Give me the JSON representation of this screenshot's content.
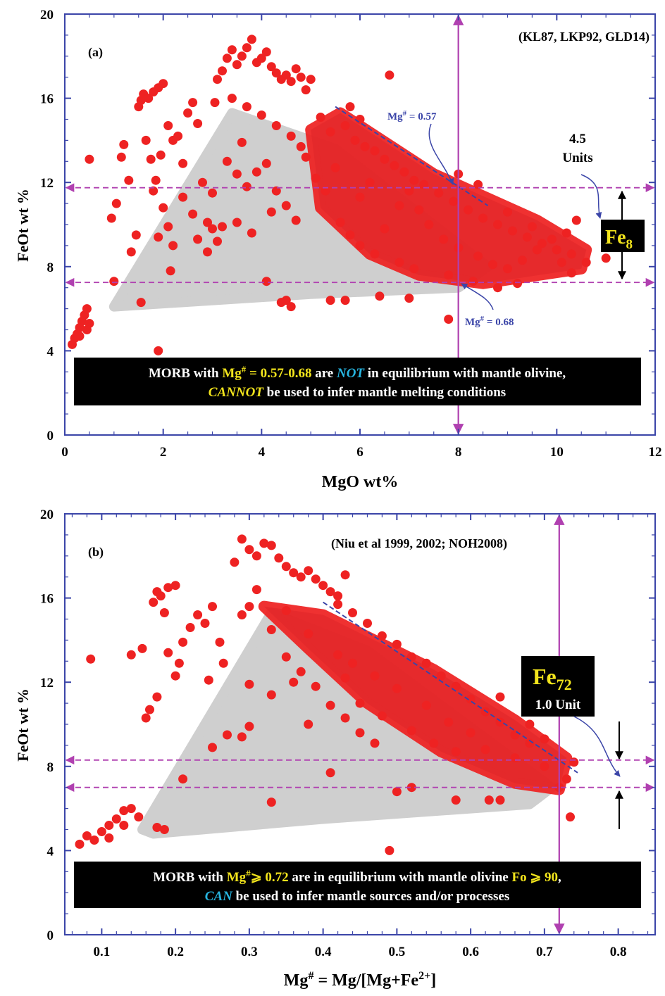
{
  "colors": {
    "frame": "#3b45a8",
    "points": "#ee2222",
    "dense": "#d81f24",
    "field": "#cfcfcf",
    "guide": "#b040b0",
    "annotation": "#3b45a8",
    "highlight": "#f2e41c",
    "italic_blue": "#27b5e0",
    "box_bg": "#000000"
  },
  "chart_data": [
    {
      "type": "scatter",
      "panel_label": "(a)",
      "source": "(KL87, LKP92, GLD14)",
      "xlabel": "MgO wt%",
      "ylabel": "FeOt wt %",
      "xlim": [
        0,
        12
      ],
      "ylim": [
        0,
        20
      ],
      "xticks": [
        "0",
        "2",
        "4",
        "6",
        "8",
        "10",
        "12"
      ],
      "yticks": [
        "0",
        "4",
        "8",
        "12",
        "16",
        "20"
      ],
      "vline_x": 8,
      "hlines_y": [
        11.75,
        7.25
      ],
      "gray_field": [
        [
          1.0,
          6.1
        ],
        [
          3.4,
          15.3
        ],
        [
          5.5,
          13.6
        ],
        [
          8.6,
          8.0
        ],
        [
          8.0,
          7.0
        ],
        [
          5.0,
          6.7
        ],
        [
          1.0,
          6.1
        ]
      ],
      "dense_band": [
        [
          5.0,
          14.5
        ],
        [
          5.6,
          15.3
        ],
        [
          7.5,
          12.4
        ],
        [
          9.6,
          10.2
        ],
        [
          10.6,
          8.8
        ],
        [
          10.5,
          7.9
        ],
        [
          8.5,
          7.2
        ],
        [
          7.2,
          7.6
        ],
        [
          6.2,
          8.6
        ],
        [
          5.2,
          10.8
        ],
        [
          5.0,
          14.5
        ]
      ],
      "dashed_line": [
        [
          5.5,
          15.6
        ],
        [
          8.6,
          10.9
        ]
      ],
      "annotations": {
        "mg057_label": "Mg",
        "mg057_sup": "#",
        "mg057_value": " = 0.57",
        "mg068_label": "Mg",
        "mg068_sup": "#",
        "mg068_value": " = 0.68",
        "units_top": "4.5",
        "units_bottom": "Units",
        "fe_main": "Fe",
        "fe_sub": "8"
      },
      "message": {
        "line1_a": "MORB with ",
        "line1_b": "Mg",
        "line1_c": "#",
        "line1_d": " = 0.57-0.68",
        "line1_e": " are ",
        "line1_f": "NOT",
        "line1_g": " in equilibrium with mantle olivine,",
        "line2_a": "CANNOT",
        "line2_b": " be used to infer mantle melting conditions"
      },
      "points": [
        [
          0.15,
          4.3
        ],
        [
          0.2,
          4.6
        ],
        [
          0.25,
          4.8
        ],
        [
          0.3,
          5.1
        ],
        [
          0.35,
          5.4
        ],
        [
          0.4,
          5.7
        ],
        [
          0.45,
          6.0
        ],
        [
          0.5,
          5.3
        ],
        [
          0.3,
          4.7
        ],
        [
          0.45,
          5.0
        ],
        [
          0.5,
          13.1
        ],
        [
          0.95,
          10.3
        ],
        [
          1.0,
          7.3
        ],
        [
          1.05,
          11.0
        ],
        [
          1.15,
          13.2
        ],
        [
          1.2,
          13.8
        ],
        [
          1.3,
          12.1
        ],
        [
          1.35,
          8.7
        ],
        [
          1.45,
          9.5
        ],
        [
          1.5,
          15.6
        ],
        [
          1.55,
          15.9
        ],
        [
          1.6,
          16.2
        ],
        [
          1.7,
          16.0
        ],
        [
          1.8,
          16.3
        ],
        [
          1.9,
          16.5
        ],
        [
          2.0,
          16.7
        ],
        [
          1.65,
          14.0
        ],
        [
          1.75,
          13.1
        ],
        [
          1.85,
          12.1
        ],
        [
          1.95,
          13.3
        ],
        [
          2.1,
          14.7
        ],
        [
          2.2,
          14.0
        ],
        [
          2.0,
          10.8
        ],
        [
          2.1,
          9.9
        ],
        [
          1.9,
          9.4
        ],
        [
          1.55,
          6.3
        ],
        [
          1.9,
          4.0
        ],
        [
          2.15,
          7.8
        ],
        [
          2.3,
          14.2
        ],
        [
          2.4,
          12.9
        ],
        [
          2.5,
          15.3
        ],
        [
          2.6,
          15.8
        ],
        [
          2.7,
          14.8
        ],
        [
          2.8,
          12.0
        ],
        [
          2.9,
          10.1
        ],
        [
          3.0,
          9.8
        ],
        [
          3.05,
          15.8
        ],
        [
          3.1,
          16.9
        ],
        [
          3.2,
          17.3
        ],
        [
          3.3,
          17.9
        ],
        [
          3.4,
          18.3
        ],
        [
          3.5,
          17.6
        ],
        [
          3.6,
          18.0
        ],
        [
          3.7,
          18.4
        ],
        [
          3.8,
          18.8
        ],
        [
          3.9,
          17.7
        ],
        [
          4.0,
          17.9
        ],
        [
          4.1,
          18.2
        ],
        [
          4.2,
          17.5
        ],
        [
          4.3,
          17.2
        ],
        [
          4.4,
          16.9
        ],
        [
          4.5,
          17.1
        ],
        [
          4.6,
          16.8
        ],
        [
          4.7,
          17.4
        ],
        [
          4.8,
          17.0
        ],
        [
          4.9,
          16.4
        ],
        [
          5.0,
          16.9
        ],
        [
          3.3,
          13.0
        ],
        [
          3.5,
          12.4
        ],
        [
          3.7,
          11.8
        ],
        [
          3.9,
          12.5
        ],
        [
          4.1,
          12.9
        ],
        [
          4.3,
          11.6
        ],
        [
          4.5,
          10.9
        ],
        [
          4.7,
          10.2
        ],
        [
          4.2,
          10.6
        ],
        [
          3.8,
          9.6
        ],
        [
          3.5,
          10.1
        ],
        [
          3.2,
          9.9
        ],
        [
          2.9,
          8.7
        ],
        [
          3.1,
          9.2
        ],
        [
          4.4,
          6.3
        ],
        [
          4.5,
          6.4
        ],
        [
          4.1,
          7.3
        ],
        [
          5.4,
          6.4
        ],
        [
          5.7,
          6.4
        ],
        [
          6.4,
          6.6
        ],
        [
          7.0,
          6.5
        ],
        [
          7.8,
          5.5
        ],
        [
          6.6,
          17.1
        ],
        [
          5.2,
          15.1
        ],
        [
          5.4,
          14.4
        ],
        [
          5.7,
          14.7
        ],
        [
          5.9,
          14.0
        ],
        [
          6.1,
          13.7
        ],
        [
          6.3,
          13.5
        ],
        [
          6.5,
          13.1
        ],
        [
          6.7,
          12.8
        ],
        [
          6.9,
          12.5
        ],
        [
          7.1,
          12.1
        ],
        [
          7.3,
          11.9
        ],
        [
          7.6,
          11.5
        ],
        [
          7.9,
          11.1
        ],
        [
          8.2,
          10.7
        ],
        [
          8.5,
          10.3
        ],
        [
          8.8,
          10.0
        ],
        [
          9.1,
          9.7
        ],
        [
          9.4,
          9.4
        ],
        [
          9.7,
          9.1
        ],
        [
          10.0,
          8.8
        ],
        [
          10.3,
          8.6
        ],
        [
          10.6,
          8.2
        ],
        [
          11.0,
          8.4
        ],
        [
          10.4,
          10.2
        ],
        [
          9.2,
          7.2
        ],
        [
          8.8,
          7.0
        ],
        [
          8.3,
          7.3
        ],
        [
          7.8,
          7.6
        ],
        [
          5.6,
          10.1
        ],
        [
          5.8,
          9.5
        ],
        [
          6.0,
          9.0
        ],
        [
          6.3,
          8.6
        ],
        [
          5.3,
          11.6
        ],
        [
          5.5,
          12.7
        ],
        [
          5.1,
          12.2
        ],
        [
          4.9,
          13.2
        ],
        [
          4.6,
          14.2
        ],
        [
          4.3,
          14.7
        ],
        [
          4.0,
          15.2
        ],
        [
          3.7,
          15.6
        ],
        [
          3.4,
          16.0
        ],
        [
          5.8,
          15.6
        ],
        [
          6.0,
          15.0
        ],
        [
          7.2,
          10.7
        ],
        [
          7.4,
          10.0
        ],
        [
          7.7,
          9.3
        ],
        [
          8.0,
          8.9
        ],
        [
          8.4,
          8.5
        ],
        [
          8.7,
          8.1
        ],
        [
          9.0,
          7.9
        ],
        [
          9.3,
          8.3
        ],
        [
          9.6,
          8.8
        ],
        [
          9.9,
          9.3
        ],
        [
          10.2,
          9.6
        ],
        [
          6.8,
          8.2
        ],
        [
          7.1,
          7.9
        ],
        [
          6.5,
          9.8
        ],
        [
          6.8,
          10.9
        ],
        [
          7.0,
          11.6
        ],
        [
          6.2,
          12.0
        ],
        [
          6.0,
          11.3
        ],
        [
          8.0,
          12.4
        ],
        [
          8.4,
          11.9
        ],
        [
          9.0,
          10.6
        ],
        [
          9.5,
          9.9
        ],
        [
          10.1,
          8.2
        ],
        [
          10.3,
          7.7
        ],
        [
          2.4,
          11.3
        ],
        [
          2.6,
          10.5
        ],
        [
          2.2,
          9.0
        ],
        [
          1.8,
          11.6
        ],
        [
          4.6,
          6.1
        ],
        [
          3.6,
          13.9
        ],
        [
          4.8,
          13.7
        ],
        [
          3.0,
          11.5
        ],
        [
          2.7,
          9.3
        ]
      ]
    },
    {
      "type": "scatter",
      "panel_label": "(b)",
      "source": "(Niu et al 1999, 2002; NOH2008)",
      "xlabel_main": "Mg",
      "xlabel_sup": "#",
      "xlabel_rest": " = Mg/[Mg+Fe",
      "xlabel_sup2": "2+",
      "xlabel_end": "]",
      "ylabel": "FeOt wt %",
      "xlim": [
        0.05,
        0.85
      ],
      "ylim": [
        0,
        20
      ],
      "xticks": [
        "0.1",
        "0.2",
        "0.3",
        "0.4",
        "0.5",
        "0.6",
        "0.7",
        "0.8"
      ],
      "yticks": [
        "0",
        "4",
        "8",
        "12",
        "16",
        "20"
      ],
      "vline_x": 0.72,
      "hlines_y": [
        8.3,
        7.0
      ],
      "gray_field": [
        [
          0.155,
          5.0
        ],
        [
          0.33,
          15.3
        ],
        [
          0.46,
          13.5
        ],
        [
          0.71,
          7.0
        ],
        [
          0.68,
          6.2
        ],
        [
          0.4,
          5.5
        ],
        [
          0.17,
          4.8
        ],
        [
          0.155,
          5.0
        ]
      ],
      "dense_band": [
        [
          0.32,
          15.6
        ],
        [
          0.4,
          15.2
        ],
        [
          0.55,
          12.6
        ],
        [
          0.66,
          10.2
        ],
        [
          0.73,
          8.4
        ],
        [
          0.72,
          6.9
        ],
        [
          0.66,
          7.2
        ],
        [
          0.56,
          8.7
        ],
        [
          0.46,
          11.0
        ],
        [
          0.38,
          13.6
        ],
        [
          0.32,
          15.6
        ]
      ],
      "dashed_line": [
        [
          0.4,
          15.8
        ],
        [
          0.745,
          7.7
        ]
      ],
      "annotations": {
        "fe_main": "Fe",
        "fe_sub": "72",
        "units": "1.0 Unit"
      },
      "message": {
        "line1_a": "MORB with ",
        "line1_b": "Mg",
        "line1_c": "#",
        "line1_d": "⩾ 0.72",
        "line1_e": " are in equilibrium with mantle olivine ",
        "line1_f": "Fo ⩾ 90",
        "line1_g": ",",
        "line2_a": "CAN",
        "line2_b": " be used to infer mantle sources and/or processes"
      },
      "points": [
        [
          0.07,
          4.3
        ],
        [
          0.08,
          4.7
        ],
        [
          0.09,
          4.5
        ],
        [
          0.1,
          4.9
        ],
        [
          0.11,
          5.2
        ],
        [
          0.12,
          5.5
        ],
        [
          0.13,
          5.9
        ],
        [
          0.14,
          6.0
        ],
        [
          0.15,
          5.6
        ],
        [
          0.13,
          5.2
        ],
        [
          0.11,
          4.6
        ],
        [
          0.085,
          13.1
        ],
        [
          0.16,
          10.3
        ],
        [
          0.165,
          10.7
        ],
        [
          0.175,
          11.3
        ],
        [
          0.155,
          13.6
        ],
        [
          0.14,
          13.3
        ],
        [
          0.17,
          15.8
        ],
        [
          0.175,
          16.3
        ],
        [
          0.18,
          16.1
        ],
        [
          0.19,
          16.5
        ],
        [
          0.2,
          16.6
        ],
        [
          0.185,
          15.3
        ],
        [
          0.19,
          13.4
        ],
        [
          0.2,
          12.3
        ],
        [
          0.205,
          12.9
        ],
        [
          0.21,
          13.9
        ],
        [
          0.22,
          14.6
        ],
        [
          0.23,
          15.2
        ],
        [
          0.24,
          14.8
        ],
        [
          0.25,
          15.6
        ],
        [
          0.26,
          13.9
        ],
        [
          0.265,
          12.9
        ],
        [
          0.245,
          12.1
        ],
        [
          0.21,
          7.4
        ],
        [
          0.25,
          8.9
        ],
        [
          0.185,
          5.0
        ],
        [
          0.175,
          5.1
        ],
        [
          0.27,
          9.5
        ],
        [
          0.29,
          9.4
        ],
        [
          0.3,
          11.9
        ],
        [
          0.28,
          17.7
        ],
        [
          0.29,
          18.8
        ],
        [
          0.3,
          18.3
        ],
        [
          0.31,
          18.0
        ],
        [
          0.32,
          18.6
        ],
        [
          0.33,
          18.5
        ],
        [
          0.34,
          17.9
        ],
        [
          0.35,
          17.5
        ],
        [
          0.36,
          17.2
        ],
        [
          0.37,
          17.0
        ],
        [
          0.38,
          17.3
        ],
        [
          0.39,
          16.9
        ],
        [
          0.4,
          16.6
        ],
        [
          0.41,
          16.3
        ],
        [
          0.42,
          16.1
        ],
        [
          0.43,
          17.1
        ],
        [
          0.31,
          16.4
        ],
        [
          0.3,
          15.6
        ],
        [
          0.29,
          15.2
        ],
        [
          0.33,
          14.5
        ],
        [
          0.35,
          13.2
        ],
        [
          0.37,
          12.5
        ],
        [
          0.39,
          11.8
        ],
        [
          0.41,
          10.9
        ],
        [
          0.43,
          10.3
        ],
        [
          0.45,
          9.6
        ],
        [
          0.47,
          9.1
        ],
        [
          0.33,
          6.3
        ],
        [
          0.41,
          7.7
        ],
        [
          0.5,
          6.8
        ],
        [
          0.52,
          7.0
        ],
        [
          0.58,
          6.4
        ],
        [
          0.625,
          6.4
        ],
        [
          0.64,
          6.4
        ],
        [
          0.735,
          5.6
        ],
        [
          0.49,
          4.0
        ],
        [
          0.74,
          8.2
        ],
        [
          0.73,
          7.4
        ],
        [
          0.72,
          7.0
        ],
        [
          0.7,
          8.0
        ],
        [
          0.68,
          9.1
        ],
        [
          0.66,
          9.5
        ],
        [
          0.64,
          10.1
        ],
        [
          0.62,
          10.6
        ],
        [
          0.6,
          11.2
        ],
        [
          0.58,
          11.8
        ],
        [
          0.56,
          12.3
        ],
        [
          0.54,
          12.9
        ],
        [
          0.52,
          13.2
        ],
        [
          0.5,
          13.8
        ],
        [
          0.48,
          14.2
        ],
        [
          0.46,
          14.8
        ],
        [
          0.44,
          15.3
        ],
        [
          0.42,
          15.7
        ],
        [
          0.6,
          9.6
        ],
        [
          0.57,
          10.1
        ],
        [
          0.54,
          10.9
        ],
        [
          0.5,
          11.7
        ],
        [
          0.47,
          12.3
        ],
        [
          0.44,
          12.9
        ],
        [
          0.42,
          13.3
        ],
        [
          0.62,
          8.8
        ],
        [
          0.66,
          8.4
        ],
        [
          0.58,
          8.7
        ],
        [
          0.55,
          9.1
        ],
        [
          0.52,
          9.7
        ],
        [
          0.48,
          10.4
        ],
        [
          0.45,
          11.0
        ],
        [
          0.36,
          12.0
        ],
        [
          0.33,
          11.4
        ],
        [
          0.3,
          9.9
        ],
        [
          0.38,
          10.0
        ],
        [
          0.43,
          12.2
        ],
        [
          0.64,
          11.3
        ],
        [
          0.68,
          10.0
        ],
        [
          0.7,
          9.3
        ],
        [
          0.38,
          14.3
        ],
        [
          0.35,
          15.4
        ]
      ]
    }
  ]
}
